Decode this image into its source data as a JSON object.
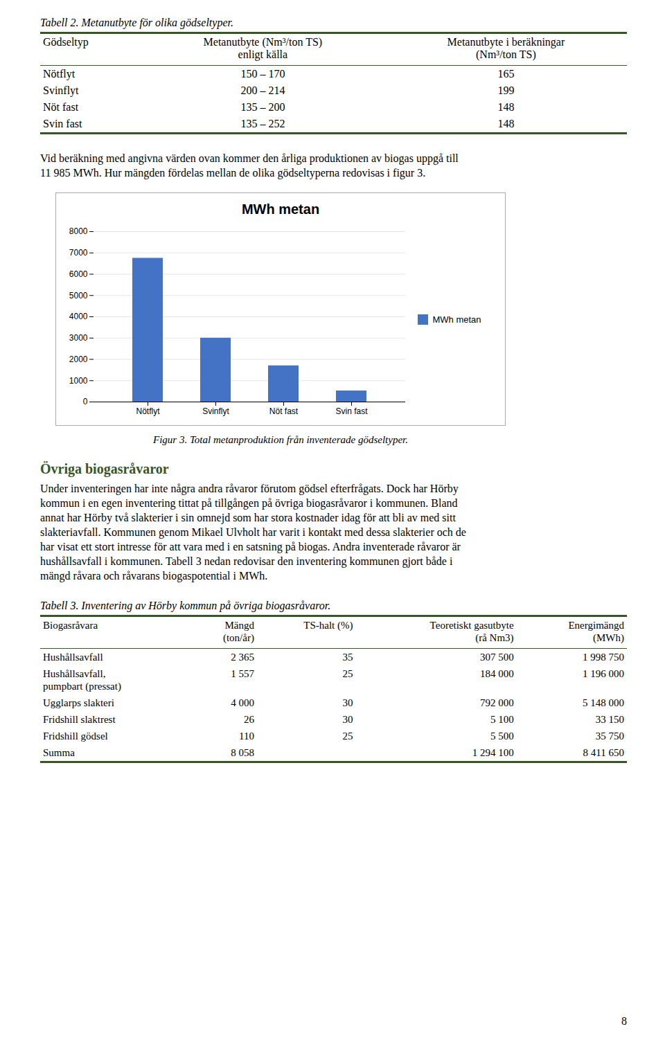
{
  "table1": {
    "title": "Tabell 2. Metanutbyte för olika gödseltyper.",
    "color": "#375623",
    "headers": [
      "Gödseltyp",
      "Metanutbyte (Nm³/ton TS)\nenligt källa",
      "Metanutbyte i beräkningar\n(Nm³/ton TS)"
    ],
    "rows": [
      [
        "Nötflyt",
        "150 – 170",
        "165"
      ],
      [
        "Svinflyt",
        "200 – 214",
        "199"
      ],
      [
        "Nöt fast",
        "135 – 200",
        "148"
      ],
      [
        "Svin fast",
        "135 – 252",
        "148"
      ]
    ]
  },
  "paragraph1": [
    "Vid beräkning med angivna värden ovan kommer den årliga produktionen av biogas uppgå till",
    "11 985 MWh. Hur mängden fördelas mellan de olika gödseltyperna redovisas i figur 3."
  ],
  "chart_data": {
    "type": "bar",
    "title": "MWh metan",
    "categories": [
      "Nötflyt",
      "Svinflyt",
      "Nöt fast",
      "Svin fast"
    ],
    "series": [
      {
        "name": "MWh metan",
        "color": "#4472C4",
        "values": [
          6750,
          3000,
          1700,
          520
        ]
      }
    ],
    "ylim": [
      0,
      8000
    ],
    "yticks": [
      0,
      1000,
      2000,
      3000,
      4000,
      5000,
      6000,
      7000,
      8000
    ],
    "grid": true,
    "legend": "right",
    "caption": "Figur 3. Total metanproduktion från inventerade gödseltyper."
  },
  "section_title": {
    "text": "Övriga biogasråvaror",
    "color": "#375623"
  },
  "paragraph2": [
    "Under inventeringen har inte några andra råvaror förutom gödsel efterfrågats. Dock har Hörby",
    "kommun i en egen inventering tittat på tillgången på övriga biogasråvaror i kommunen. Bland",
    "annat har Hörby två slakterier i sin omnejd som har stora kostnader idag för att bli av med sitt",
    "slakteriavfall. Kommunen genom Mikael Ulvholt har varit i kontakt med dessa slakterier och de",
    "har visat ett stort intresse för att vara med i en satsning på biogas. Andra inventerade råvaror är",
    "hushållsavfall i kommunen. Tabell 3 nedan redovisar den inventering kommunen gjort både i",
    "mängd råvara och råvarans biogaspotential i MWh."
  ],
  "table2": {
    "title": "Tabell 3. Inventering av Hörby kommun på övriga biogasråvaror.",
    "color": "#375623",
    "headers": [
      "Biogasråvara",
      "Mängd\n(ton/år)",
      "TS-halt (%)",
      "Teoretiskt gasutbyte\n(rå Nm3)",
      "Energimängd\n(MWh)"
    ],
    "rows": [
      [
        "Hushållsavfall",
        "2 365",
        "35",
        "307 500",
        "1 998 750"
      ],
      [
        "Hushållsavfall,\npumpbart (pressat)",
        "1 557",
        "25",
        "184 000",
        "1 196 000"
      ],
      [
        "Ugglarps slakteri",
        "4 000",
        "30",
        "792 000",
        "5 148 000"
      ],
      [
        "Fridshill slaktrest",
        "26",
        "30",
        "5 100",
        "33 150"
      ],
      [
        "Fridshill gödsel",
        "110",
        "25",
        "5 500",
        "35 750"
      ],
      [
        "Summa",
        "8 058",
        null,
        "1 294 100",
        "8 411 650"
      ]
    ]
  },
  "page_number": "8"
}
